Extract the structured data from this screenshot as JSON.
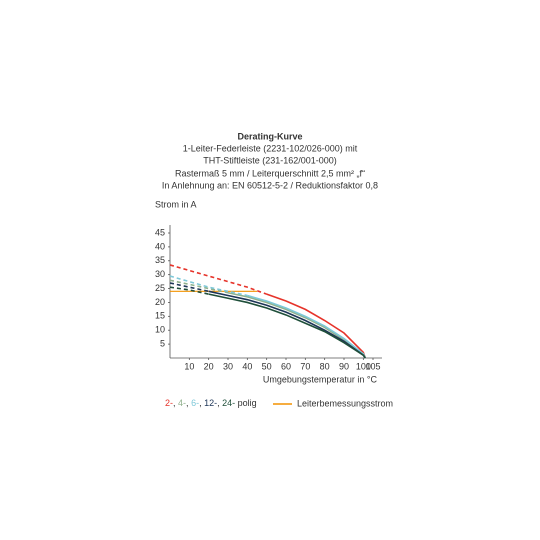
{
  "chart_data": {
    "type": "line",
    "title": [
      "Derating-Kurve",
      "1-Leiter-Federleiste (2231-102/026-000) mit",
      "THT-Stiftleiste (231-162/001-000)",
      "Rastermaß 5 mm / Leiterquerschnitt 2,5 mm² „f“",
      "In Anlehnung an: EN 60512-5-2 / Reduktionsfaktor 0,8"
    ],
    "y_label": "Strom in A",
    "x_label": "Umgebungstemperatur in °C",
    "x": [
      0,
      10,
      20,
      30,
      40,
      50,
      60,
      70,
      80,
      90,
      100,
      101
    ],
    "series": [
      {
        "name": "2-",
        "color": "#e6332a",
        "dashed_until": 43,
        "values": [
          33.5,
          31.5,
          29.5,
          27.5,
          25.5,
          23,
          20.5,
          17.5,
          13.5,
          9,
          2,
          0
        ]
      },
      {
        "name": "4-",
        "color": "#8fb08c",
        "dashed_until": 20,
        "values": [
          28,
          26.5,
          25,
          23.5,
          22,
          20,
          17.5,
          14.5,
          11,
          6.5,
          1.5,
          0
        ]
      },
      {
        "name": "6-",
        "color": "#7ec8d8",
        "dashed_until": 30,
        "values": [
          29.5,
          27.5,
          25.5,
          24,
          22.5,
          20.5,
          18,
          15,
          11.5,
          7,
          1.5,
          0
        ]
      },
      {
        "name": "12-",
        "color": "#1d3557",
        "dashed_until": 15,
        "values": [
          27,
          25.5,
          24,
          22.5,
          21,
          19,
          16.5,
          13.5,
          10,
          6,
          1,
          0
        ]
      },
      {
        "name": "24-",
        "color": "#1f4f3a",
        "dashed_until": 10,
        "values": [
          25.5,
          24.5,
          23,
          21.5,
          20,
          18,
          15.5,
          12.5,
          9.5,
          5.5,
          1,
          0
        ]
      }
    ],
    "legend_separator": ", ",
    "legend_suffix": " polig",
    "rated_current": {
      "name": "Leiterbemessungsstrom",
      "color": "#f39200",
      "x": [
        0,
        45
      ],
      "values": [
        24,
        24
      ]
    },
    "xlim": [
      0,
      105
    ],
    "ylim": [
      0,
      45
    ],
    "xticks": [
      10,
      20,
      30,
      40,
      50,
      60,
      70,
      80,
      90,
      100,
      105
    ],
    "yticks": [
      5,
      10,
      15,
      20,
      25,
      30,
      35,
      40,
      45
    ],
    "grid": false
  }
}
